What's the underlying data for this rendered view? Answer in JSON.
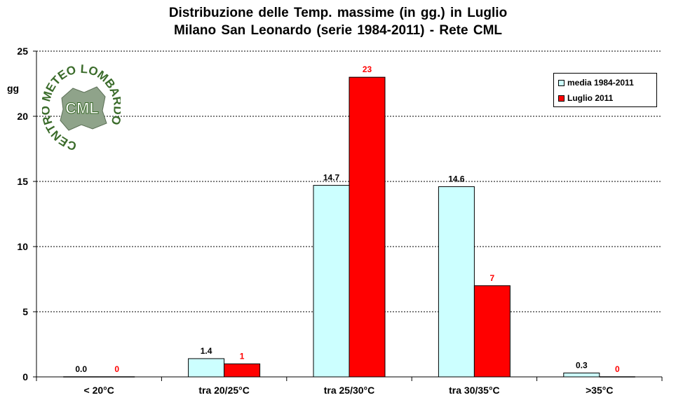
{
  "title_line1": "Distribuzione  delle  Temp.  massime  (in gg.)  in  Luglio",
  "title_line2": "Milano  San  Leonardo  (serie  1984-2011)  - Rete  CML",
  "logo": {
    "ring_text": "CENTRO METEO LOMBARDO",
    "center_text": "CML",
    "color": "#3a6b2a"
  },
  "colors": {
    "media": "#ccffff",
    "luglio": "#ff0000",
    "luglio_label": "#ff0000",
    "grid": "#000000"
  },
  "chart_data": {
    "type": "bar",
    "title": "Distribuzione delle Temp. massime (in gg.) in Luglio",
    "subtitle": "Milano San Leonardo (serie 1984-2011) - Rete CML",
    "ylabel": "gg",
    "xlabel": "",
    "ylim": [
      0,
      25
    ],
    "yticks": [
      0,
      5,
      10,
      15,
      20,
      25
    ],
    "grid": true,
    "legend_position": "top-right",
    "categories": [
      "< 20°C",
      "tra 20/25°C",
      "tra 25/30°C",
      "tra 30/35°C",
      ">35°C"
    ],
    "series": [
      {
        "name": "media 1984-2011",
        "values": [
          0.0,
          1.4,
          14.7,
          14.6,
          0.3
        ],
        "labels": [
          "0.0",
          "1.4",
          "14.7",
          "14.6",
          "0.3"
        ]
      },
      {
        "name": "Luglio 2011",
        "values": [
          0,
          1,
          23,
          7,
          0
        ],
        "labels": [
          "0",
          "1",
          "23",
          "7",
          "0"
        ]
      }
    ]
  }
}
